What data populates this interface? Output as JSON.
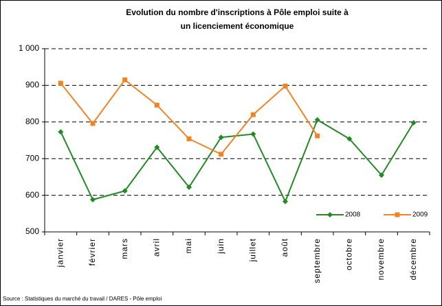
{
  "chart_data": {
    "type": "line",
    "title": [
      "Evolution du nombre d'inscriptions à Pôle emploi suite à",
      "un licenciement économique"
    ],
    "categories": [
      "janvier",
      "février",
      "mars",
      "avril",
      "mai",
      "juin",
      "juillet",
      "août",
      "septembre",
      "octobre",
      "novembre",
      "décembre"
    ],
    "series": [
      {
        "name": "2008",
        "color": "#218a21",
        "marker": "diamond",
        "values": [
          773,
          588,
          612,
          731,
          622,
          758,
          767,
          583,
          806,
          754,
          655,
          798
        ]
      },
      {
        "name": "2009",
        "color": "#f58220",
        "marker": "square",
        "values": [
          906,
          796,
          915,
          846,
          754,
          712,
          820,
          898,
          762,
          null,
          null,
          null
        ]
      }
    ],
    "ylim": [
      500,
      1000
    ],
    "yticks": [
      500,
      600,
      700,
      800,
      900,
      {
        "value": 1000,
        "label": "1 000"
      }
    ],
    "grid": true,
    "legend": "lower right",
    "source": "Source : Statistiques du marché du travail / DARES - Pôle emploi"
  }
}
